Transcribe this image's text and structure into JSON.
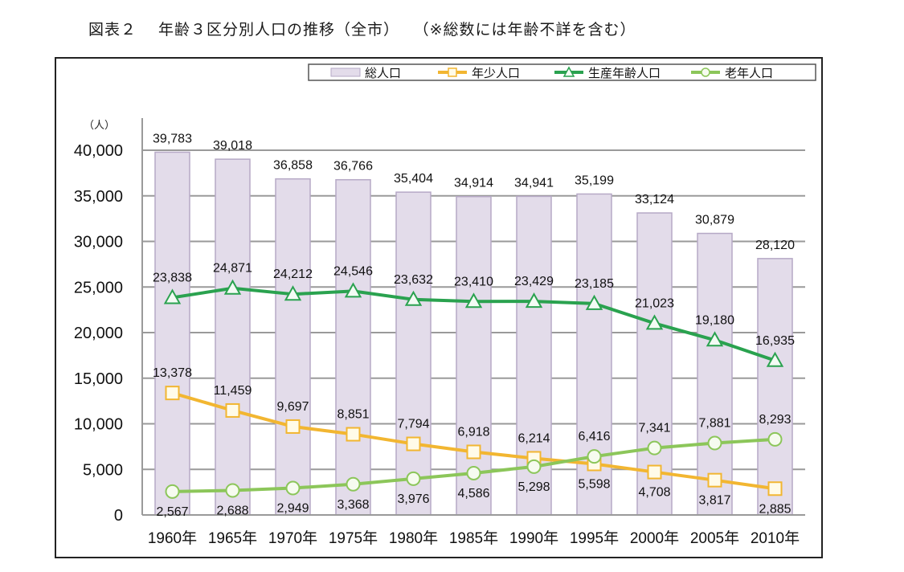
{
  "figure_title": "図表２　 年齢３区分別人口の推移（全市）　 （※総数には年齢不詳を含む）",
  "chart_data": {
    "type": "bar",
    "title": "年齢３区分別人口の推移（全市）",
    "figure_label": "図表２",
    "note": "（※総数には年齢不詳を含む）",
    "xlabel": "",
    "ylabel": "（人）",
    "ylim": [
      0,
      40000
    ],
    "yticks": [
      0,
      5000,
      10000,
      15000,
      20000,
      25000,
      30000,
      35000,
      40000
    ],
    "ytick_labels": [
      "0",
      "5,000",
      "10,000",
      "15,000",
      "20,000",
      "25,000",
      "30,000",
      "35,000",
      "40,000"
    ],
    "grid": true,
    "legend_position": "top-right",
    "categories": [
      "1960年",
      "1965年",
      "1970年",
      "1975年",
      "1980年",
      "1985年",
      "1990年",
      "1995年",
      "2000年",
      "2005年",
      "2010年"
    ],
    "series": [
      {
        "name": "総人口",
        "kind": "bar",
        "color": "#e3dcea",
        "edge": "#b6a9c6",
        "values": [
          39783,
          39018,
          36858,
          36766,
          35404,
          34914,
          34941,
          35199,
          33124,
          30879,
          28120
        ],
        "labels": [
          "39,783",
          "39,018",
          "36,858",
          "36,766",
          "35,404",
          "34,914",
          "34,941",
          "35,199",
          "33,124",
          "30,879",
          "28,120"
        ]
      },
      {
        "name": "年少人口",
        "kind": "line",
        "marker": "square",
        "color": "#f2b631",
        "values": [
          13378,
          11459,
          9697,
          8851,
          7794,
          6918,
          6214,
          5598,
          4708,
          3817,
          2885
        ],
        "labels": [
          "13,378",
          "11,459",
          "9,697",
          "8,851",
          "7,794",
          "6,918",
          "6,214",
          "5,598",
          "4,708",
          "3,817",
          "2,885"
        ]
      },
      {
        "name": "生産年齢人口",
        "kind": "line",
        "marker": "triangle",
        "color": "#2aa24f",
        "values": [
          23838,
          24871,
          24212,
          24546,
          23632,
          23410,
          23429,
          23185,
          21023,
          19180,
          16935
        ],
        "labels": [
          "23,838",
          "24,871",
          "24,212",
          "24,546",
          "23,632",
          "23,410",
          "23,429",
          "23,185",
          "21,023",
          "19,180",
          "16,935"
        ]
      },
      {
        "name": "老年人口",
        "kind": "line",
        "marker": "circle",
        "color": "#8cc65a",
        "values": [
          2567,
          2688,
          2949,
          3368,
          3976,
          4586,
          5298,
          6416,
          7341,
          7881,
          8293
        ],
        "labels": [
          "2,567",
          "2,688",
          "2,949",
          "3,368",
          "3,976",
          "4,586",
          "5,298",
          "6,416",
          "7,341",
          "7,881",
          "8,293"
        ]
      }
    ]
  }
}
